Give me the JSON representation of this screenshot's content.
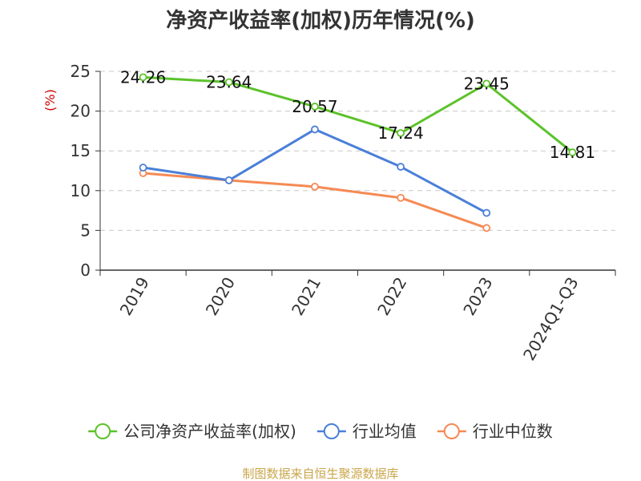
{
  "chart_data": {
    "type": "line",
    "title": "净资产收益率(加权)历年情况(%)",
    "ylabel": "(%)",
    "xlabel": "",
    "categories": [
      "2019",
      "2020",
      "2021",
      "2022",
      "2023",
      "2024Q1-Q3"
    ],
    "ylim": [
      0,
      25
    ],
    "yticks": [
      "0",
      "5",
      "10",
      "15",
      "20",
      "25"
    ],
    "grid": true,
    "legend_position": "bottom",
    "series": [
      {
        "name": "公司净资产收益率(加权)",
        "color": "#5cc22a",
        "values": [
          24.26,
          23.64,
          20.57,
          17.24,
          23.45,
          14.81
        ],
        "labels": [
          "24.26",
          "23.64",
          "20.57",
          "17.24",
          "23.45",
          "14.81"
        ]
      },
      {
        "name": "行业均值",
        "color": "#4a7fd8",
        "values": [
          12.9,
          11.3,
          17.7,
          13.0,
          7.2,
          null
        ]
      },
      {
        "name": "行业中位数",
        "color": "#f58a54",
        "values": [
          12.2,
          11.3,
          10.5,
          9.1,
          5.3,
          null
        ]
      }
    ]
  },
  "source": "制图数据来自恒生聚源数据库"
}
